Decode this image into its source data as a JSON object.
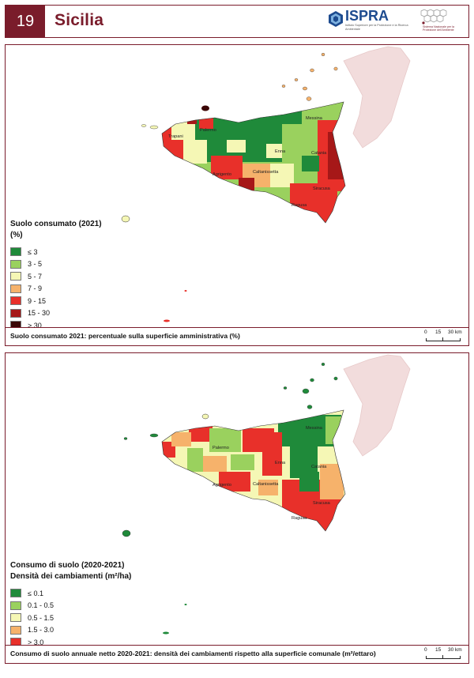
{
  "header": {
    "number": "19",
    "region": "Sicilia",
    "ispra_word": "ISPRA",
    "ispra_subtitle": "Istituto Superiore per la Protezione e la Ricerca Ambientale",
    "snpa_subtitle": "Sistema Nazionale per la Protezione dell'Ambiente"
  },
  "map1": {
    "legend_title": "Suolo consumato (2021)",
    "legend_unit": "(%)",
    "classes": [
      {
        "label": "≤ 3",
        "color": "#1f8a3a"
      },
      {
        "label": "3 - 5",
        "color": "#9ad15e"
      },
      {
        "label": "5 - 7",
        "color": "#f5f7b5"
      },
      {
        "label": "7 - 9",
        "color": "#f6b26b"
      },
      {
        "label": "9 - 15",
        "color": "#e8302a"
      },
      {
        "label": "15 - 30",
        "color": "#a61818"
      },
      {
        "label": "> 30",
        "color": "#3b0606"
      }
    ],
    "caption": "Suolo consumato 2021: percentuale sulla superficie amministrativa (%)",
    "cities": [
      "Trapani",
      "Palermo",
      "Messina",
      "Enna",
      "Catania",
      "Caltanissetta",
      "Agrigento",
      "Siracusa",
      "Ragusa"
    ]
  },
  "map2": {
    "legend_title": "Consumo di suolo (2020-2021)",
    "legend_unit": "Densità dei cambiamenti (m²/ha)",
    "classes": [
      {
        "label": "≤ 0.1",
        "color": "#1f8a3a"
      },
      {
        "label": "0.1 - 0.5",
        "color": "#9ad15e"
      },
      {
        "label": "0.5 - 1.5",
        "color": "#f5f7b5"
      },
      {
        "label": "1.5 - 3.0",
        "color": "#f6b26b"
      },
      {
        "label": "> 3.0",
        "color": "#e8302a"
      }
    ],
    "caption": "Consumo di suolo annuale netto 2020-2021: densità dei cambiamenti rispetto alla superficie comunale (m²/ettaro)",
    "cities": [
      "Palermo",
      "Messina",
      "Enna",
      "Catania",
      "Caltanissetta",
      "Agrigento",
      "Siracusa",
      "Ragusa"
    ]
  },
  "scale": {
    "t0": "0",
    "t1": "15",
    "t2": "30 km"
  }
}
